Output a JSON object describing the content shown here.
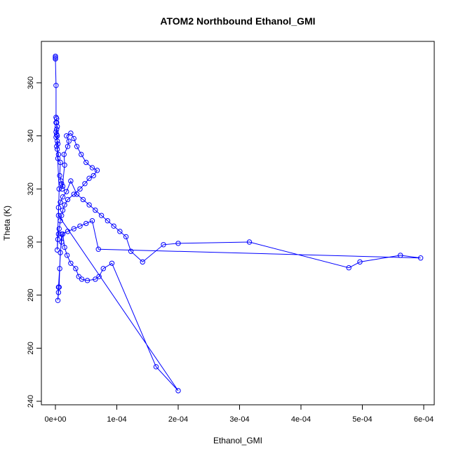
{
  "chart_data": {
    "type": "line",
    "title": "ATOM2 Northbound Ethanol_GMI",
    "xlabel": "Ethanol_GMI",
    "ylabel": "Theta (K)",
    "xlim": [
      0,
      0.0006
    ],
    "ylim": [
      240,
      370
    ],
    "xticks": [
      0,
      0.0001,
      0.0002,
      0.0003,
      0.0004,
      0.0005,
      0.0006
    ],
    "xtick_labels": [
      "0e+00",
      "1e-04",
      "2e-04",
      "3e-04",
      "4e-04",
      "5e-04",
      "6e-04"
    ],
    "yticks": [
      240,
      260,
      280,
      300,
      320,
      340,
      360
    ],
    "ytick_labels": [
      "240",
      "260",
      "280",
      "300",
      "320",
      "340",
      "360"
    ],
    "grid": false,
    "color": "#0000ff",
    "marker": "open-circle",
    "series": [
      {
        "x": [
          0.0,
          0.0,
          0.0,
          1e-06,
          1e-06,
          2e-06,
          1e-06,
          3e-06,
          2e-06,
          1e-06,
          2e-06,
          3e-06,
          1e-06,
          3e-06,
          4e-06,
          2e-06,
          5e-06,
          4e-06,
          8e-06,
          7e-06,
          9e-06,
          1e-05,
          1.2e-05,
          1.1e-05,
          1.5e-05,
          1.4e-05,
          2e-05,
          2.2e-05,
          1.8e-05,
          2.5e-05,
          3e-05,
          3.5e-05,
          4.2e-05,
          5e-05,
          6e-05,
          6.8e-05,
          6.2e-05,
          5.5e-05,
          4.8e-05,
          4e-05,
          3e-05,
          2e-05,
          1.5e-05,
          1.2e-05,
          1e-05,
          8e-06,
          6e-06,
          5e-06,
          4e-06,
          3e-06,
          5e-06,
          8e-06,
          1.2e-05,
          1.8e-05,
          2.5e-05,
          3.5e-05,
          4.5e-05,
          5.5e-05,
          6.5e-05,
          7.5e-05,
          8.5e-05,
          9.5e-05,
          0.000105,
          0.000115,
          0.000123,
          0.000142,
          0.000176,
          0.0002,
          0.000316,
          0.000478,
          0.000496,
          0.000562,
          0.000595,
          7e-05,
          6e-05,
          5e-05,
          4e-05,
          3e-05,
          2e-05,
          1e-05,
          5e-06,
          4e-06,
          5e-06,
          6e-06,
          7e-06,
          8e-06,
          1e-05,
          1.2e-05,
          1.5e-05,
          1.9e-05,
          2.5e-05,
          3.3e-05,
          3.8e-05,
          4.3e-05,
          5.2e-05,
          6.5e-05,
          7.1e-05,
          7.8e-05,
          9.2e-05,
          0.000164,
          0.0002,
          5e-06,
          6e-06,
          3e-06,
          2e-06
        ],
        "y": [
          370,
          369.5,
          369,
          359,
          347,
          346.5,
          345,
          343.5,
          342.5,
          341.5,
          340.5,
          340,
          339.5,
          338,
          337,
          336,
          333,
          331.5,
          330,
          325,
          323,
          322,
          321,
          320,
          329,
          333,
          336,
          338,
          340,
          341,
          339,
          336,
          333,
          330,
          328,
          327,
          325,
          324,
          322,
          320,
          318,
          316,
          314,
          312,
          310,
          308,
          305,
          303,
          301,
          297,
          313,
          315,
          317,
          319,
          323,
          318,
          316,
          314,
          312,
          310,
          308,
          306,
          304,
          302,
          296.5,
          292.5,
          299,
          299.5,
          300,
          290.3,
          292.5,
          295,
          294,
          297.3,
          308,
          307,
          306,
          305,
          304,
          303,
          283,
          278,
          281,
          283,
          290,
          296,
          300,
          303,
          298,
          295,
          292,
          290,
          287,
          286,
          285.5,
          286,
          287,
          290,
          292,
          253,
          244,
          310,
          320,
          335,
          345
        ]
      }
    ]
  }
}
